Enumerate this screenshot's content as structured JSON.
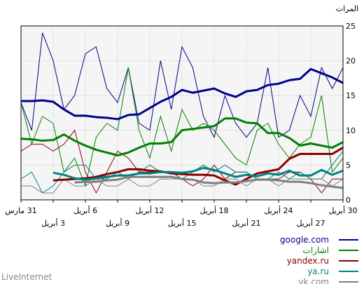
{
  "footer": {
    "brand": "LiveInternet",
    "source": "vk.com"
  },
  "chart_data": {
    "type": "line",
    "title": "",
    "ylabel": "المرات",
    "xlabel": "",
    "ylim": [
      0,
      25
    ],
    "y_ticks": [
      0,
      5,
      10,
      15,
      20,
      25
    ],
    "grid": true,
    "legend_position": "bottom-right",
    "x_tick_labels": [
      {
        "day": 0,
        "label": "30 أبريل",
        "row": 1
      },
      {
        "day": 3,
        "label": "27 أبريل",
        "row": 2
      },
      {
        "day": 6,
        "label": "24 أبريل",
        "row": 1
      },
      {
        "day": 9,
        "label": "21 أبريل",
        "row": 2
      },
      {
        "day": 12,
        "label": "18 أبريل",
        "row": 1
      },
      {
        "day": 15,
        "label": "15 أبريل",
        "row": 2
      },
      {
        "day": 18,
        "label": "12 أبريل",
        "row": 1
      },
      {
        "day": 21,
        "label": "9 أبريل",
        "row": 2
      },
      {
        "day": 24,
        "label": "6 أبريل",
        "row": 1
      },
      {
        "day": 27,
        "label": "3 أبريل",
        "row": 2
      },
      {
        "day": 30,
        "label": "31 مارس",
        "row": 1
      }
    ],
    "series": [
      {
        "name": "google.com",
        "color": "#00008b",
        "values": [
          19,
          16,
          19,
          12,
          15,
          10,
          9,
          19,
          11,
          9,
          11,
          15,
          9,
          12,
          19,
          22,
          13,
          20,
          10,
          11,
          19,
          14,
          16,
          22,
          21,
          15,
          13,
          20,
          24,
          10,
          14
        ]
      },
      {
        "name": "google.com",
        "role": "average",
        "color": "#00008b",
        "values": [
          null,
          null,
          null,
          null,
          null,
          null,
          null,
          null,
          null,
          null,
          null,
          null,
          null,
          null,
          null,
          null,
          null,
          null,
          null,
          null,
          null,
          null,
          null,
          null,
          17,
          18,
          19,
          17,
          16.5,
          17,
          14.2
        ]
      },
      {
        "name": "اشارات",
        "color": "#008000",
        "values": [
          6,
          4,
          15,
          9,
          8,
          6,
          8,
          11,
          10,
          5,
          6,
          8,
          10,
          11,
          10,
          13,
          7,
          12,
          6,
          10,
          19,
          10,
          11,
          9,
          2,
          6,
          4,
          11,
          12,
          8,
          14
        ]
      },
      {
        "name": "yandex.ru",
        "color": "#8b0000",
        "values": [
          3,
          3,
          1,
          3,
          4,
          4,
          3,
          3,
          3,
          4,
          4,
          3,
          5,
          3,
          2,
          3,
          4,
          4,
          4,
          4,
          6,
          7,
          4,
          1,
          4,
          10,
          8,
          7,
          8,
          8,
          7
        ]
      },
      {
        "name": "ya.ru",
        "color": "#008080",
        "values": [
          7,
          5,
          3,
          3,
          4,
          3,
          4,
          3,
          3,
          4,
          4,
          5,
          4,
          5,
          4,
          3,
          4,
          4,
          5,
          4,
          3,
          4,
          3,
          3,
          5,
          5,
          4,
          2,
          1,
          4,
          3
        ]
      },
      {
        "name": "vk.com",
        "color": "#808080",
        "values": [
          3,
          2,
          3,
          3,
          3,
          3,
          2,
          3,
          3,
          2,
          3,
          3,
          2,
          2,
          3,
          3,
          3,
          3,
          2,
          2,
          3,
          2,
          2,
          3,
          2,
          2,
          3,
          1,
          1,
          2,
          2
        ]
      }
    ],
    "averages": [
      {
        "series": "google.com",
        "color": "#00008b",
        "values": [
          16.8,
          17.6,
          18.2,
          18.8,
          17.4,
          17.2,
          16.7,
          16.5,
          15.8,
          15.6,
          14.8,
          15.3,
          16,
          15.7,
          15.4,
          15.8,
          14.8,
          14.1,
          13.2,
          12.3,
          12.2,
          11.6,
          11.8,
          11.9,
          12.1,
          12.1,
          13,
          14.1,
          14.3,
          14.2,
          14.2
        ]
      },
      {
        "series": "اشارات",
        "color": "#008000",
        "values": [
          8.3,
          7.5,
          7.8,
          8.1,
          7.8,
          8.9,
          9.6,
          9.6,
          11,
          11.1,
          11.7,
          11.7,
          10.6,
          10.4,
          10.2,
          10,
          8.3,
          8.1,
          8.1,
          7.5,
          6.8,
          6.4,
          6.8,
          7.2,
          7.8,
          8.5,
          9.4,
          8.6,
          8.5,
          8.7,
          8.8
        ]
      },
      {
        "series": "yandex.ru",
        "color": "#8b0000",
        "values": [
          7.5,
          6.6,
          6.6,
          6.6,
          6.6,
          5.9,
          4.4,
          4.1,
          3.8,
          3,
          2.2,
          2.8,
          3.5,
          3.6,
          3.6,
          3.7,
          3.8,
          4.1,
          4.2,
          4.4,
          4.4,
          4,
          3.7,
          3.3,
          3.1,
          3,
          2.9,
          2.8
        ]
      },
      {
        "series": "ya.ru",
        "color": "#008080",
        "values": [
          4.2,
          3.6,
          4.3,
          3.5,
          3.5,
          4.2,
          3.6,
          3.8,
          3.4,
          3.6,
          3.3,
          3.8,
          4.3,
          4.6,
          4.1,
          3.9,
          4,
          4,
          3.8,
          3.8,
          3.5,
          3.5,
          3.3,
          3.1,
          2.9,
          3.1,
          3.6,
          3.9
        ]
      },
      {
        "series": "vk.com",
        "color": "#808080",
        "values": [
          1.7,
          1.9,
          2.1,
          2.4,
          2.6,
          2.6,
          2.8,
          2.9,
          2.9,
          2.7,
          2.5,
          2.5,
          2.4,
          2.5,
          2.9,
          3,
          3.3,
          3.3,
          3.3,
          3.3,
          3.3,
          2.9,
          2.8,
          2.6,
          2.6,
          2.5
        ]
      }
    ]
  }
}
